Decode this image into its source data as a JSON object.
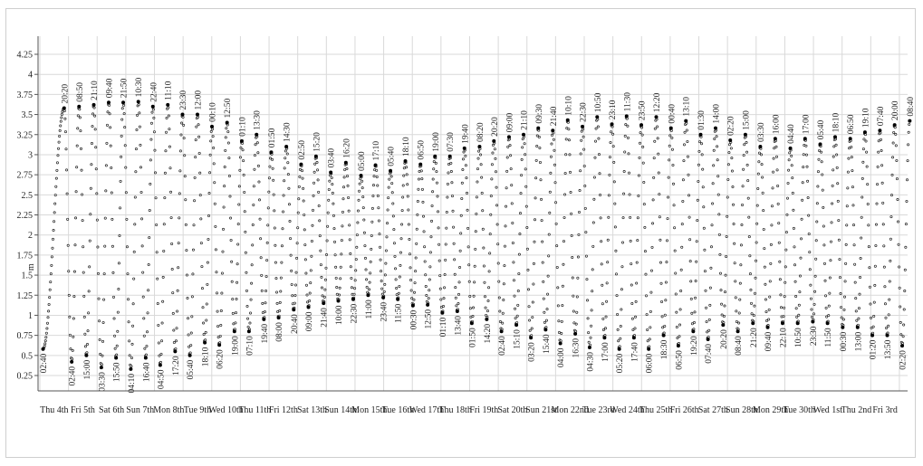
{
  "chart_data": {
    "type": "scatter",
    "ylabel": "m",
    "ylim": [
      0.25,
      4.25
    ],
    "yticks": [
      "0.25",
      "0.5",
      "0.75",
      "1",
      "1.25",
      "1.5",
      "1.75",
      "2",
      "2.25",
      "2.5",
      "2.75",
      "3",
      "3.25",
      "3.5",
      "3.75",
      "4",
      "4.25"
    ],
    "grid": true,
    "x_categories": [
      "Thu 4th",
      "Fri 5th",
      "Sat 6th",
      "Sun 7th",
      "Mon 8th",
      "Tue 9th",
      "Wed 10th",
      "Thu 11th",
      "Fri 12th",
      "Sat 13th",
      "Sun 14th",
      "Mon 15th",
      "Tue 16th",
      "Wed 17th",
      "Thu 18th",
      "Fri 19th",
      "Sat 20th",
      "Sun 21st",
      "Mon 22nd",
      "Tue 23rd",
      "Wed 24th",
      "Thu 25th",
      "Fri 26th",
      "Sat 27th",
      "Sun 28th",
      "Mon 29th",
      "Tue 30th",
      "Wed 1st",
      "Thu 2nd",
      "Fri 3rd"
    ],
    "tide_extremes": [
      {
        "time": "02:40",
        "height": 0.58,
        "type": "low"
      },
      {
        "time": "20:20",
        "height": 3.58,
        "type": "high"
      },
      {
        "time": "02:40",
        "height": 0.42,
        "type": "low"
      },
      {
        "time": "08:50",
        "height": 3.6,
        "type": "high"
      },
      {
        "time": "15:00",
        "height": 0.5,
        "type": "low"
      },
      {
        "time": "21:10",
        "height": 3.62,
        "type": "high"
      },
      {
        "time": "03:30",
        "height": 0.35,
        "type": "low"
      },
      {
        "time": "09:40",
        "height": 3.65,
        "type": "high"
      },
      {
        "time": "15:50",
        "height": 0.47,
        "type": "low"
      },
      {
        "time": "21:50",
        "height": 3.65,
        "type": "high"
      },
      {
        "time": "04:10",
        "height": 0.33,
        "type": "low"
      },
      {
        "time": "10:30",
        "height": 3.66,
        "type": "high"
      },
      {
        "time": "16:40",
        "height": 0.47,
        "type": "low"
      },
      {
        "time": "22:40",
        "height": 3.6,
        "type": "high"
      },
      {
        "time": "04:50",
        "height": 0.38,
        "type": "low"
      },
      {
        "time": "11:10",
        "height": 3.62,
        "type": "high"
      },
      {
        "time": "17:20",
        "height": 0.55,
        "type": "low"
      },
      {
        "time": "23:30",
        "height": 3.5,
        "type": "high"
      },
      {
        "time": "05:40",
        "height": 0.5,
        "type": "low"
      },
      {
        "time": "12:00",
        "height": 3.5,
        "type": "high"
      },
      {
        "time": "18:10",
        "height": 0.66,
        "type": "low"
      },
      {
        "time": "00:10",
        "height": 3.35,
        "type": "high"
      },
      {
        "time": "06:20",
        "height": 0.63,
        "type": "low"
      },
      {
        "time": "12:50",
        "height": 3.4,
        "type": "high"
      },
      {
        "time": "19:00",
        "height": 0.8,
        "type": "low"
      },
      {
        "time": "01:10",
        "height": 3.17,
        "type": "high"
      },
      {
        "time": "07:10",
        "height": 0.8,
        "type": "low"
      },
      {
        "time": "13:30",
        "height": 3.25,
        "type": "high"
      },
      {
        "time": "19:40",
        "height": 0.95,
        "type": "low"
      },
      {
        "time": "01:50",
        "height": 3.03,
        "type": "high"
      },
      {
        "time": "08:00",
        "height": 0.97,
        "type": "low"
      },
      {
        "time": "14:30",
        "height": 3.1,
        "type": "high"
      },
      {
        "time": "20:40",
        "height": 1.07,
        "type": "low"
      },
      {
        "time": "02:50",
        "height": 2.88,
        "type": "high"
      },
      {
        "time": "09:00",
        "height": 1.1,
        "type": "low"
      },
      {
        "time": "15:20",
        "height": 2.98,
        "type": "high"
      },
      {
        "time": "21:40",
        "height": 1.15,
        "type": "low"
      },
      {
        "time": "03:40",
        "height": 2.78,
        "type": "high"
      },
      {
        "time": "10:00",
        "height": 1.18,
        "type": "low"
      },
      {
        "time": "16:20",
        "height": 2.9,
        "type": "high"
      },
      {
        "time": "22:30",
        "height": 1.2,
        "type": "low"
      },
      {
        "time": "05:00",
        "height": 2.74,
        "type": "high"
      },
      {
        "time": "11:00",
        "height": 1.25,
        "type": "low"
      },
      {
        "time": "17:10",
        "height": 2.87,
        "type": "high"
      },
      {
        "time": "23:40",
        "height": 1.22,
        "type": "low"
      },
      {
        "time": "05:40",
        "height": 2.8,
        "type": "high"
      },
      {
        "time": "11:50",
        "height": 1.2,
        "type": "low"
      },
      {
        "time": "18:10",
        "height": 2.92,
        "type": "high"
      },
      {
        "time": "00:30",
        "height": 1.12,
        "type": "low"
      },
      {
        "time": "06:50",
        "height": 2.88,
        "type": "high"
      },
      {
        "time": "12:50",
        "height": 1.13,
        "type": "low"
      },
      {
        "time": "19:00",
        "height": 2.98,
        "type": "high"
      },
      {
        "time": "01:10",
        "height": 1.03,
        "type": "low"
      },
      {
        "time": "07:30",
        "height": 2.98,
        "type": "high"
      },
      {
        "time": "13:40",
        "height": 1.05,
        "type": "low"
      },
      {
        "time": "19:40",
        "height": 3.08,
        "type": "high"
      },
      {
        "time": "01:50",
        "height": 0.9,
        "type": "low"
      },
      {
        "time": "08:20",
        "height": 3.1,
        "type": "high"
      },
      {
        "time": "14:20",
        "height": 0.95,
        "type": "low"
      },
      {
        "time": "20:20",
        "height": 3.17,
        "type": "high"
      },
      {
        "time": "02:40",
        "height": 0.8,
        "type": "low"
      },
      {
        "time": "09:00",
        "height": 3.22,
        "type": "high"
      },
      {
        "time": "15:10",
        "height": 0.88,
        "type": "low"
      },
      {
        "time": "21:10",
        "height": 3.25,
        "type": "high"
      },
      {
        "time": "03:20",
        "height": 0.72,
        "type": "low"
      },
      {
        "time": "09:30",
        "height": 3.33,
        "type": "high"
      },
      {
        "time": "15:40",
        "height": 0.82,
        "type": "low"
      },
      {
        "time": "21:40",
        "height": 3.3,
        "type": "high"
      },
      {
        "time": "04:00",
        "height": 0.65,
        "type": "low"
      },
      {
        "time": "10:10",
        "height": 3.43,
        "type": "high"
      },
      {
        "time": "16:30",
        "height": 0.77,
        "type": "low"
      },
      {
        "time": "22:30",
        "height": 3.35,
        "type": "high"
      },
      {
        "time": "04:30",
        "height": 0.6,
        "type": "low"
      },
      {
        "time": "10:50",
        "height": 3.47,
        "type": "high"
      },
      {
        "time": "17:00",
        "height": 0.72,
        "type": "low"
      },
      {
        "time": "23:10",
        "height": 3.38,
        "type": "high"
      },
      {
        "time": "05:20",
        "height": 0.58,
        "type": "low"
      },
      {
        "time": "11:30",
        "height": 3.48,
        "type": "high"
      },
      {
        "time": "17:40",
        "height": 0.72,
        "type": "low"
      },
      {
        "time": "23:50",
        "height": 3.37,
        "type": "high"
      },
      {
        "time": "06:00",
        "height": 0.58,
        "type": "low"
      },
      {
        "time": "12:20",
        "height": 3.47,
        "type": "high"
      },
      {
        "time": "18:30",
        "height": 0.75,
        "type": "low"
      },
      {
        "time": "00:40",
        "height": 3.33,
        "type": "high"
      },
      {
        "time": "06:50",
        "height": 0.62,
        "type": "low"
      },
      {
        "time": "13:10",
        "height": 3.42,
        "type": "high"
      },
      {
        "time": "19:20",
        "height": 0.8,
        "type": "low"
      },
      {
        "time": "01:30",
        "height": 3.25,
        "type": "high"
      },
      {
        "time": "07:40",
        "height": 0.7,
        "type": "low"
      },
      {
        "time": "14:00",
        "height": 3.33,
        "type": "high"
      },
      {
        "time": "20:20",
        "height": 0.88,
        "type": "low"
      },
      {
        "time": "02:20",
        "height": 3.18,
        "type": "high"
      },
      {
        "time": "08:40",
        "height": 0.8,
        "type": "low"
      },
      {
        "time": "15:00",
        "height": 3.25,
        "type": "high"
      },
      {
        "time": "21:20",
        "height": 0.9,
        "type": "low"
      },
      {
        "time": "03:30",
        "height": 3.1,
        "type": "high"
      },
      {
        "time": "09:40",
        "height": 0.85,
        "type": "low"
      },
      {
        "time": "16:00",
        "height": 3.2,
        "type": "high"
      },
      {
        "time": "22:10",
        "height": 0.9,
        "type": "low"
      },
      {
        "time": "04:40",
        "height": 3.08,
        "type": "high"
      },
      {
        "time": "10:50",
        "height": 0.9,
        "type": "low"
      },
      {
        "time": "17:00",
        "height": 3.2,
        "type": "high"
      },
      {
        "time": "23:30",
        "height": 0.92,
        "type": "low"
      },
      {
        "time": "05:40",
        "height": 3.13,
        "type": "high"
      },
      {
        "time": "11:50",
        "height": 0.9,
        "type": "low"
      },
      {
        "time": "18:10",
        "height": 3.22,
        "type": "high"
      },
      {
        "time": "00:30",
        "height": 0.85,
        "type": "low"
      },
      {
        "time": "06:50",
        "height": 3.2,
        "type": "high"
      },
      {
        "time": "13:00",
        "height": 0.85,
        "type": "low"
      },
      {
        "time": "19:10",
        "height": 3.28,
        "type": "high"
      },
      {
        "time": "01:20",
        "height": 0.75,
        "type": "low"
      },
      {
        "time": "07:40",
        "height": 3.3,
        "type": "high"
      },
      {
        "time": "13:50",
        "height": 0.75,
        "type": "low"
      },
      {
        "time": "20:00",
        "height": 3.37,
        "type": "high"
      },
      {
        "time": "02:20",
        "height": 0.62,
        "type": "low"
      },
      {
        "time": "08:40",
        "height": 3.42,
        "type": "high"
      }
    ]
  }
}
